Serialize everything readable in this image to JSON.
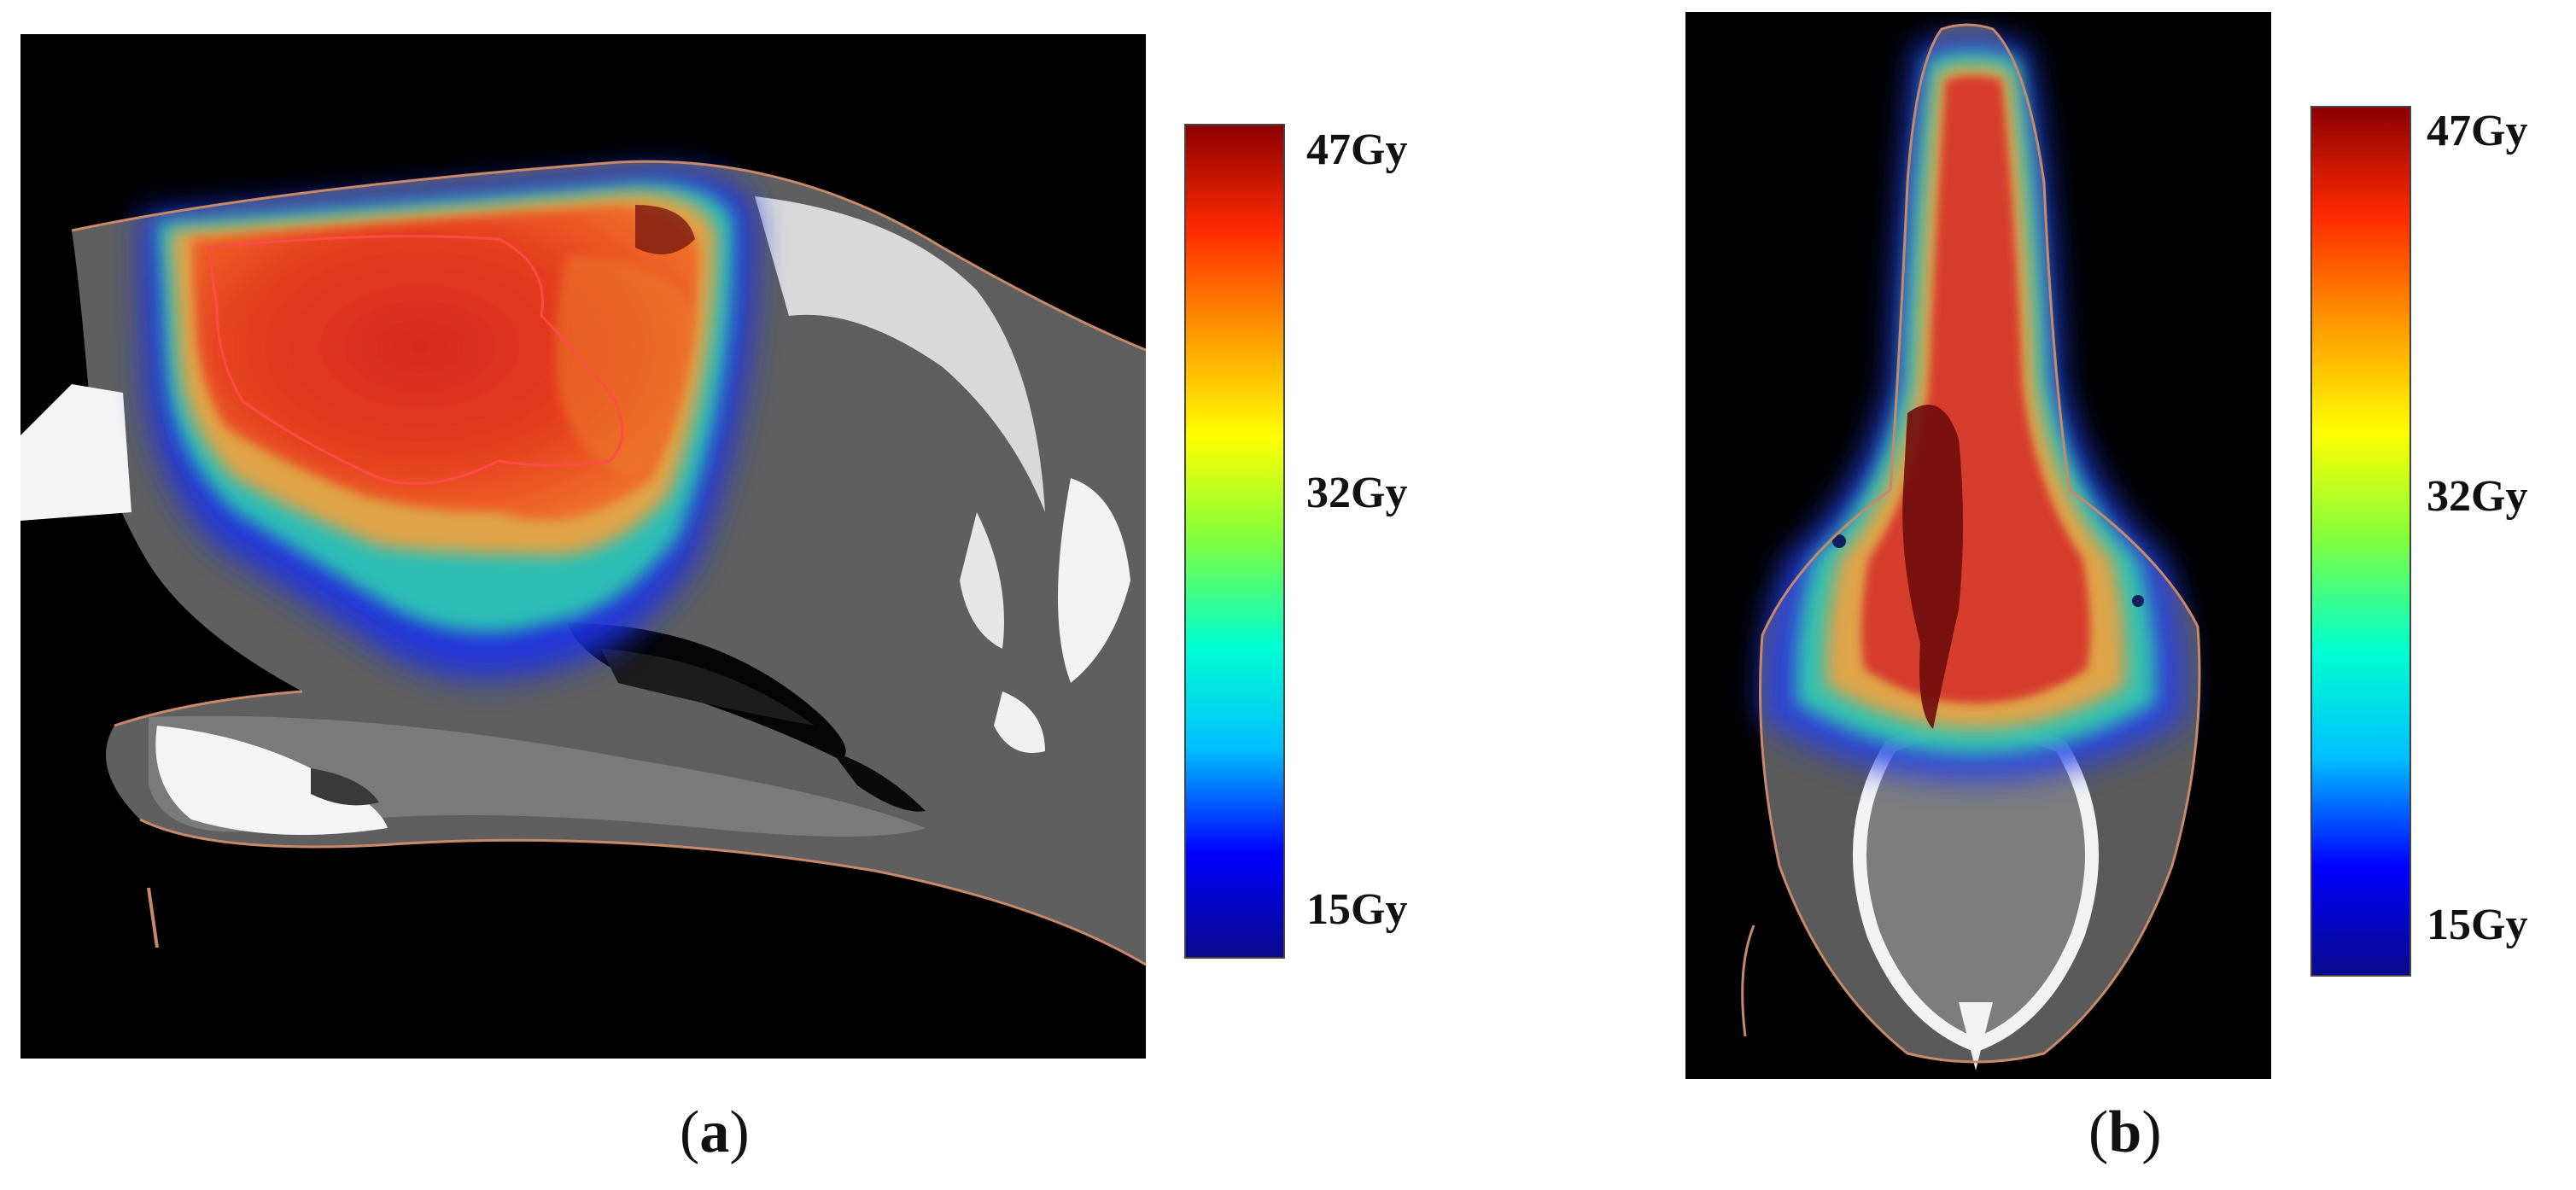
{
  "panels": [
    {
      "label_open": "(",
      "label_letter": "a",
      "label_close": ")",
      "view": "sagittal CT with radiation dose overlay",
      "colorbar": {
        "max_label": "47Gy",
        "mid_label": "32Gy",
        "min_label": "15Gy",
        "colormap": "jet",
        "colors": [
          "#0a0a8c",
          "#0000ff",
          "#00bfff",
          "#00ffd0",
          "#7fff3f",
          "#ffff00",
          "#ff9900",
          "#ff2a00",
          "#8c0000"
        ]
      }
    },
    {
      "label_open": "(",
      "label_letter": "b",
      "label_close": ")",
      "view": "axial CT with radiation dose overlay",
      "colorbar": {
        "max_label": "47Gy",
        "mid_label": "32Gy",
        "min_label": "15Gy",
        "colormap": "jet",
        "colors": [
          "#0a0a8c",
          "#0000ff",
          "#00bfff",
          "#00ffd0",
          "#7fff3f",
          "#ffff00",
          "#ff9900",
          "#ff2a00",
          "#8c0000"
        ]
      }
    }
  ]
}
